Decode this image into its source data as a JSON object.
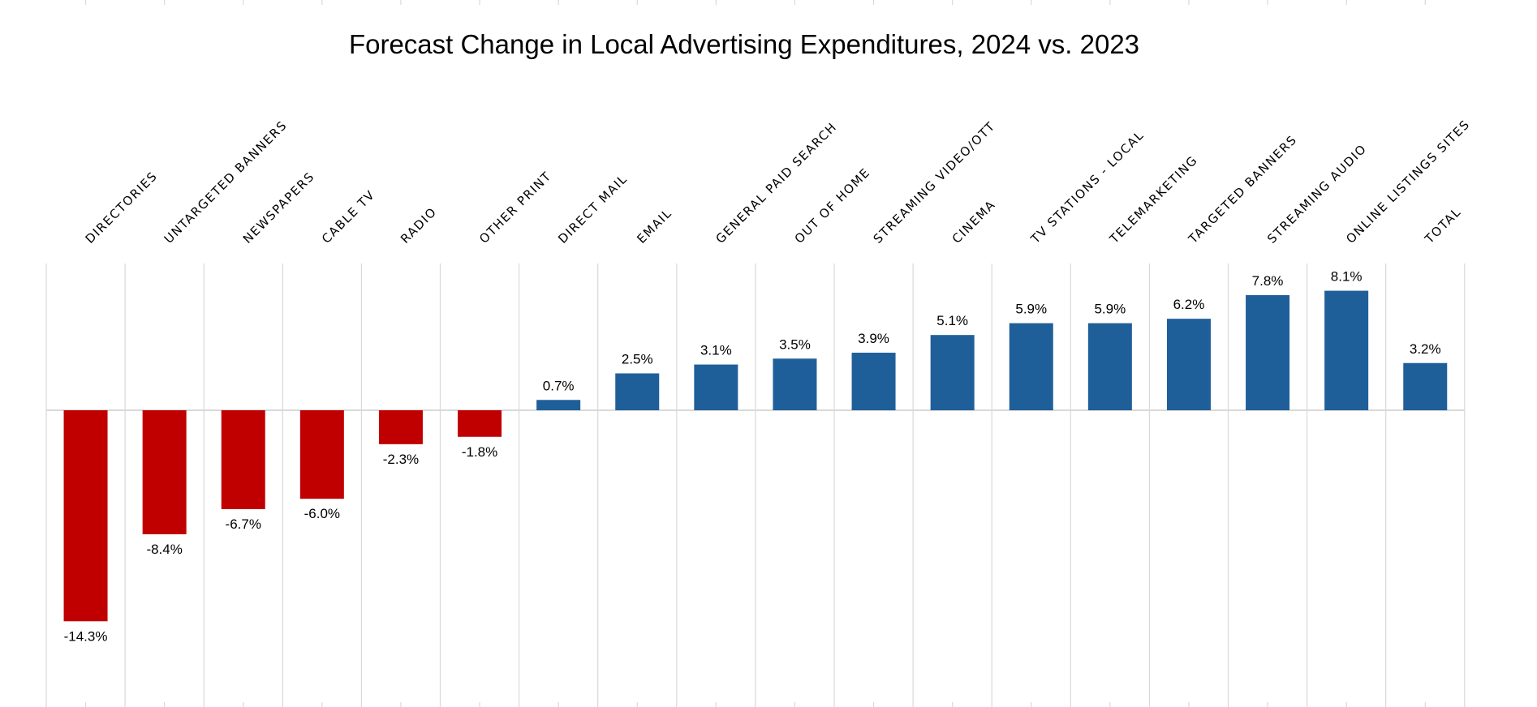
{
  "chart_data": {
    "type": "bar",
    "title": "Forecast Change in Local Advertising Expenditures, 2024 vs. 2023",
    "xlabel": "",
    "ylabel": "",
    "ylim": [
      -19.5,
      16.5
    ],
    "grid": "vertical",
    "legend": "none",
    "categories": [
      "DIRECTORIES",
      "UNTARGETED BANNERS",
      "NEWSPAPERS",
      "CABLE TV",
      "RADIO",
      "OTHER PRINT",
      "DIRECT MAIL",
      "EMAIL",
      "GENERAL PAID SEARCH",
      "OUT OF HOME",
      "STREAMING VIDEO/OTT",
      "CINEMA",
      "TV STATIONS - LOCAL",
      "TELEMARKETING",
      "TARGETED BANNERS",
      "STREAMING AUDIO",
      "ONLINE LISTINGS SITES",
      "TOTAL"
    ],
    "values": [
      -14.3,
      -8.4,
      -6.7,
      -6.0,
      -2.3,
      -1.8,
      0.7,
      2.5,
      3.1,
      3.5,
      3.9,
      5.1,
      5.9,
      5.9,
      6.2,
      7.8,
      8.1,
      3.2
    ],
    "data_labels": [
      "-14.3%",
      "-8.4%",
      "-6.7%",
      "-6.0%",
      "-2.3%",
      "-1.8%",
      "0.7%",
      "2.5%",
      "3.1%",
      "3.5%",
      "3.9%",
      "5.1%",
      "5.9%",
      "5.9%",
      "6.2%",
      "7.8%",
      "8.1%",
      "3.2%"
    ],
    "colors": {
      "negative": "#C00000",
      "positive": "#1F5F99",
      "grid": "#D9D9D9"
    }
  }
}
